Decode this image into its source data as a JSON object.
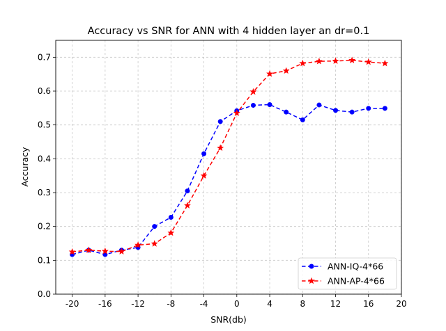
{
  "chart_data": {
    "type": "line",
    "title": "Accuracy vs SNR for ANN with 4 hidden layer an dr=0.1",
    "xlabel": "SNR(db)",
    "ylabel": "Accuracy",
    "xlim": [
      -22,
      20
    ],
    "ylim": [
      0,
      0.75
    ],
    "xticks": [
      -20,
      -16,
      -12,
      -8,
      -4,
      0,
      4,
      8,
      12,
      16,
      20
    ],
    "yticks": [
      0.0,
      0.1,
      0.2,
      0.3,
      0.4,
      0.5,
      0.6,
      0.7
    ],
    "grid": true,
    "legend_position": "bottom-right",
    "x": [
      -20,
      -18,
      -16,
      -14,
      -12,
      -10,
      -8,
      -6,
      -4,
      -2,
      0,
      2,
      4,
      6,
      8,
      10,
      12,
      14,
      16,
      18
    ],
    "series": [
      {
        "name": "ANN-IQ-4*66",
        "color": "#0000ff",
        "marker": "circle",
        "values": [
          0.117,
          0.13,
          0.117,
          0.13,
          0.138,
          0.2,
          0.227,
          0.305,
          0.415,
          0.51,
          0.542,
          0.558,
          0.56,
          0.538,
          0.515,
          0.559,
          0.543,
          0.538,
          0.549,
          0.549
        ]
      },
      {
        "name": "ANN-AP-4*66",
        "color": "#ff0000",
        "marker": "star",
        "values": [
          0.125,
          0.13,
          0.127,
          0.126,
          0.145,
          0.149,
          0.181,
          0.262,
          0.35,
          0.432,
          0.535,
          0.598,
          0.651,
          0.66,
          0.682,
          0.688,
          0.689,
          0.691,
          0.686,
          0.682
        ]
      }
    ]
  }
}
